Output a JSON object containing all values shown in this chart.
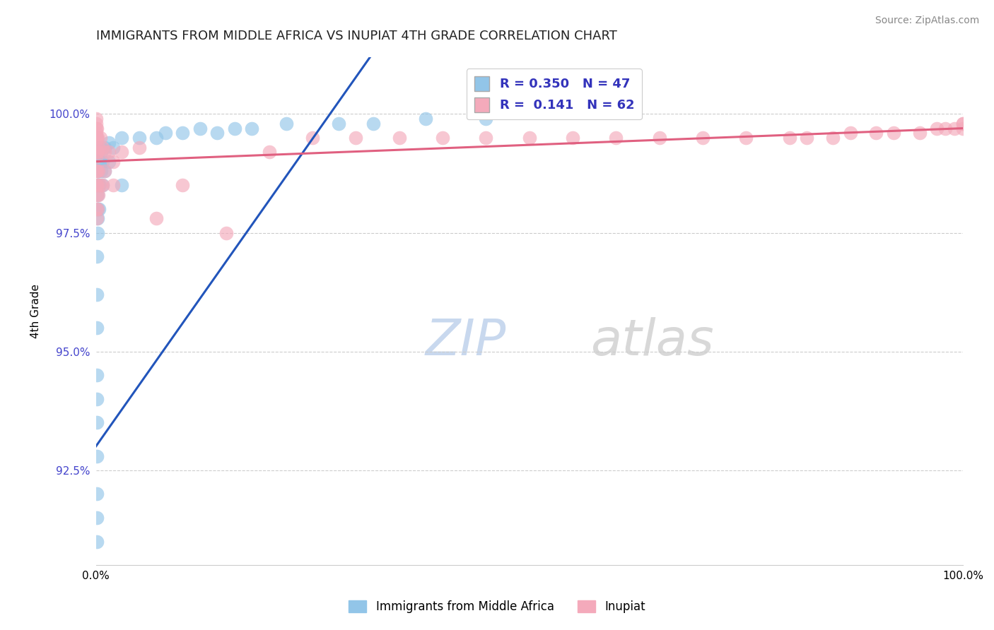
{
  "title": "IMMIGRANTS FROM MIDDLE AFRICA VS INUPIAT 4TH GRADE CORRELATION CHART",
  "source": "Source: ZipAtlas.com",
  "ylabel": "4th Grade",
  "y_ticks": [
    92.5,
    95.0,
    97.5,
    100.0
  ],
  "y_tick_labels": [
    "92.5%",
    "95.0%",
    "97.5%",
    "100.0%"
  ],
  "x_range": [
    0.0,
    1.0
  ],
  "y_range": [
    90.5,
    101.2
  ],
  "blue_R": 0.35,
  "blue_N": 47,
  "pink_R": 0.141,
  "pink_N": 62,
  "blue_color": "#92C5E8",
  "pink_color": "#F4AABB",
  "blue_line_color": "#2255BB",
  "pink_line_color": "#E06080",
  "legend_label_blue": "Immigrants from Middle Africa",
  "legend_label_pink": "Inupiat",
  "blue_x": [
    0.001,
    0.001,
    0.001,
    0.001,
    0.001,
    0.001,
    0.001,
    0.001,
    0.001,
    0.001,
    0.002,
    0.002,
    0.002,
    0.002,
    0.002,
    0.003,
    0.003,
    0.003,
    0.004,
    0.004,
    0.004,
    0.005,
    0.005,
    0.006,
    0.006,
    0.008,
    0.008,
    0.01,
    0.01,
    0.015,
    0.015,
    0.02,
    0.03,
    0.03,
    0.05,
    0.07,
    0.08,
    0.1,
    0.12,
    0.14,
    0.16,
    0.18,
    0.22,
    0.28,
    0.32,
    0.38,
    0.45
  ],
  "blue_y": [
    91.0,
    91.5,
    92.0,
    92.8,
    93.5,
    94.0,
    94.5,
    95.5,
    96.2,
    97.0,
    97.5,
    97.8,
    98.0,
    98.3,
    98.8,
    98.5,
    98.8,
    99.2,
    98.0,
    98.5,
    99.0,
    99.0,
    99.3,
    98.8,
    99.2,
    98.5,
    99.0,
    98.8,
    99.3,
    99.0,
    99.4,
    99.3,
    98.5,
    99.5,
    99.5,
    99.5,
    99.6,
    99.6,
    99.7,
    99.6,
    99.7,
    99.7,
    99.8,
    99.8,
    99.8,
    99.9,
    99.9
  ],
  "pink_x": [
    0.0,
    0.0,
    0.0,
    0.0,
    0.0,
    0.0,
    0.0,
    0.0,
    0.0,
    0.0,
    0.001,
    0.001,
    0.001,
    0.001,
    0.001,
    0.001,
    0.002,
    0.002,
    0.002,
    0.002,
    0.003,
    0.003,
    0.003,
    0.005,
    0.005,
    0.008,
    0.008,
    0.01,
    0.01,
    0.015,
    0.02,
    0.02,
    0.03,
    0.05,
    0.07,
    0.1,
    0.15,
    0.2,
    0.25,
    0.3,
    0.35,
    0.4,
    0.45,
    0.5,
    0.55,
    0.6,
    0.65,
    0.7,
    0.75,
    0.8,
    0.82,
    0.85,
    0.87,
    0.9,
    0.92,
    0.95,
    0.97,
    0.98,
    0.99,
    1.0,
    1.0,
    1.0
  ],
  "pink_y": [
    99.9,
    99.8,
    99.7,
    99.6,
    99.5,
    99.3,
    99.1,
    98.8,
    98.5,
    98.0,
    99.7,
    99.5,
    99.2,
    98.8,
    98.3,
    97.8,
    99.5,
    99.2,
    98.5,
    98.0,
    99.3,
    98.8,
    98.3,
    99.5,
    98.5,
    99.3,
    98.5,
    99.2,
    98.8,
    99.2,
    99.0,
    98.5,
    99.2,
    99.3,
    97.8,
    98.5,
    97.5,
    99.2,
    99.5,
    99.5,
    99.5,
    99.5,
    99.5,
    99.5,
    99.5,
    99.5,
    99.5,
    99.5,
    99.5,
    99.5,
    99.5,
    99.5,
    99.6,
    99.6,
    99.6,
    99.6,
    99.7,
    99.7,
    99.7,
    99.7,
    99.8,
    99.8
  ]
}
